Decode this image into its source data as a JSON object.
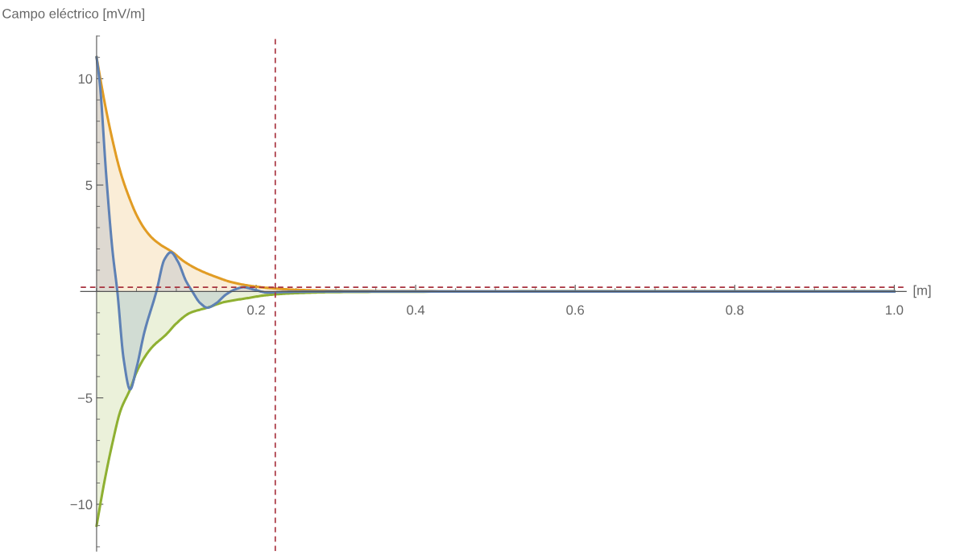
{
  "chart_data": {
    "type": "area",
    "ylabel": "Campo eléctrico [mV/m]",
    "xlabel": "[m]",
    "xlim": [
      -0.02,
      1.015
    ],
    "ylim": [
      -12.2,
      12.0
    ],
    "xticks": [
      0.2,
      0.4,
      0.6,
      0.8,
      {
        "value": 1.0,
        "label": "1.0"
      }
    ],
    "yticks": [
      {
        "value": -10,
        "label": "−10"
      },
      {
        "value": -5,
        "label": "−5"
      },
      5,
      10
    ],
    "grid": false,
    "series": [
      {
        "color": "#e19c24",
        "x": [
          0,
          0.01,
          0.02,
          0.03,
          0.04,
          0.05,
          0.06,
          0.07,
          0.08,
          0.095,
          0.11,
          0.129,
          0.15,
          0.168,
          0.19,
          0.214,
          0.25,
          0.3,
          0.4,
          0.6,
          1.0
        ],
        "values": [
          11,
          8.9,
          7.1,
          5.6,
          4.5,
          3.6,
          2.95,
          2.5,
          2.2,
          1.85,
          1.4,
          1.0,
          0.68,
          0.45,
          0.28,
          0.17,
          0.08,
          0.03,
          0.01,
          0,
          0
        ]
      },
      {
        "color": "#8fb032",
        "x": [
          0,
          0.01,
          0.02,
          0.03,
          0.042,
          0.05,
          0.06,
          0.07,
          0.087,
          0.1,
          0.117,
          0.139,
          0.16,
          0.188,
          0.214,
          0.25,
          0.3,
          0.4,
          0.6,
          1.0
        ],
        "values": [
          -11,
          -8.9,
          -7.1,
          -5.6,
          -4.6,
          -3.8,
          -3.1,
          -2.6,
          -2.03,
          -1.5,
          -1.01,
          -0.76,
          -0.5,
          -0.32,
          -0.17,
          -0.08,
          -0.03,
          -0.01,
          0,
          0
        ]
      },
      {
        "color": "#5e81b5",
        "x": [
          0,
          0.004,
          0.012,
          0.02,
          0.026,
          0.034,
          0.042,
          0.05,
          0.06,
          0.075,
          0.085,
          0.093,
          0.102,
          0.112,
          0.12,
          0.13,
          0.139,
          0.15,
          0.162,
          0.174,
          0.184,
          0.198,
          0.214,
          0.24,
          0.3,
          0.6,
          1.0
        ],
        "values": [
          11,
          9.8,
          5.5,
          1.9,
          0,
          -3.2,
          -4.6,
          -3.6,
          -1.9,
          0,
          1.5,
          1.84,
          1.4,
          0.5,
          0,
          -0.55,
          -0.76,
          -0.55,
          -0.15,
          0.1,
          0.2,
          0.08,
          -0.05,
          -0.02,
          0,
          0,
          0
        ]
      }
    ],
    "ref_lines": [
      {
        "axis": "x",
        "value": 0.224,
        "color": "#a8323e",
        "line_style": "dashed"
      },
      {
        "axis": "y",
        "value": 0.2,
        "color": "#a8323e",
        "line_style": "dashed"
      }
    ]
  }
}
